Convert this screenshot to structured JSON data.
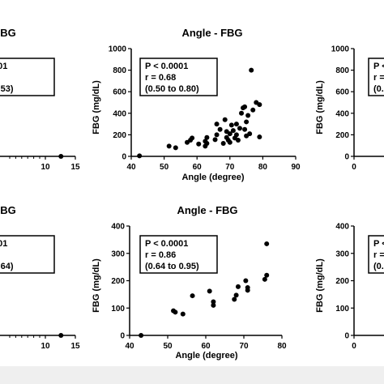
{
  "chart_data": [
    {
      "panel": "top-left",
      "type": "scatter",
      "title": "BG",
      "xlabel": "n)",
      "ylabel": "",
      "xticks": [
        "10",
        "15"
      ],
      "xlim": [
        0,
        15
      ],
      "stats": [
        "P < 0.0001",
        "r = -0.69",
        ".81 to -0.53)"
      ],
      "points": [
        {
          "x": 12.6,
          "y": 0
        }
      ]
    },
    {
      "panel": "top-middle",
      "type": "scatter",
      "title": "Angle - FBG",
      "xlabel": "Angle (degree)",
      "ylabel": "FBG (mg/dL)",
      "xlim": [
        40,
        90
      ],
      "ylim": [
        0,
        1000
      ],
      "xticks": [
        "40",
        "50",
        "60",
        "70",
        "80",
        "90"
      ],
      "yticks": [
        "0",
        "200",
        "400",
        "600",
        "800",
        "1000"
      ],
      "stats": [
        "P < 0.0001",
        "r = 0.68",
        "(0.50 to 0.80)"
      ],
      "points": [
        {
          "x": 42.5,
          "y": 5
        },
        {
          "x": 51.5,
          "y": 95
        },
        {
          "x": 53.5,
          "y": 80
        },
        {
          "x": 57,
          "y": 130
        },
        {
          "x": 58,
          "y": 150
        },
        {
          "x": 58.5,
          "y": 170
        },
        {
          "x": 60.5,
          "y": 115
        },
        {
          "x": 62.5,
          "y": 140
        },
        {
          "x": 62.5,
          "y": 95
        },
        {
          "x": 63,
          "y": 175
        },
        {
          "x": 63,
          "y": 120
        },
        {
          "x": 65.5,
          "y": 155
        },
        {
          "x": 66,
          "y": 200
        },
        {
          "x": 66,
          "y": 300
        },
        {
          "x": 67,
          "y": 250
        },
        {
          "x": 68,
          "y": 120
        },
        {
          "x": 68.5,
          "y": 340
        },
        {
          "x": 69,
          "y": 230
        },
        {
          "x": 69,
          "y": 175
        },
        {
          "x": 69.5,
          "y": 150
        },
        {
          "x": 70,
          "y": 210
        },
        {
          "x": 70,
          "y": 130
        },
        {
          "x": 70.5,
          "y": 290
        },
        {
          "x": 71,
          "y": 240
        },
        {
          "x": 71.5,
          "y": 170
        },
        {
          "x": 72,
          "y": 300
        },
        {
          "x": 72,
          "y": 200
        },
        {
          "x": 72.5,
          "y": 150
        },
        {
          "x": 73,
          "y": 260
        },
        {
          "x": 73.5,
          "y": 400
        },
        {
          "x": 74,
          "y": 450
        },
        {
          "x": 74.5,
          "y": 460
        },
        {
          "x": 74.5,
          "y": 250
        },
        {
          "x": 75,
          "y": 190
        },
        {
          "x": 75,
          "y": 320
        },
        {
          "x": 75.5,
          "y": 380
        },
        {
          "x": 76,
          "y": 210
        },
        {
          "x": 76.5,
          "y": 800
        },
        {
          "x": 77,
          "y": 430
        },
        {
          "x": 78,
          "y": 500
        },
        {
          "x": 79,
          "y": 480
        },
        {
          "x": 79,
          "y": 180
        }
      ]
    },
    {
      "panel": "top-right",
      "type": "scatter",
      "title": "",
      "xlabel": "",
      "ylabel": "FBG (mg/dL)",
      "ylim": [
        0,
        1000
      ],
      "yticks": [
        "0",
        "200",
        "400",
        "600",
        "800",
        "1000"
      ],
      "xticks": [
        "0"
      ],
      "stats": [
        "P <",
        "r =",
        "(0."
      ],
      "points": []
    },
    {
      "panel": "bottom-left",
      "type": "scatter",
      "title": "BG",
      "xlabel": "n)",
      "ylabel": "",
      "xticks": [
        "10",
        "15"
      ],
      "xlim": [
        0,
        15
      ],
      "stats": [
        "P < 0.0001",
        "r = -0.86",
        ".95 to -0.64)"
      ],
      "points": [
        {
          "x": 12.6,
          "y": 0
        }
      ]
    },
    {
      "panel": "bottom-middle",
      "type": "scatter",
      "title": "Angle - FBG",
      "xlabel": "Angle (degree)",
      "ylabel": "FBG (mg/dL)",
      "xlim": [
        40,
        80
      ],
      "ylim": [
        0,
        400
      ],
      "xticks": [
        "40",
        "50",
        "60",
        "70",
        "80"
      ],
      "yticks": [
        "0",
        "100",
        "200",
        "300",
        "400"
      ],
      "stats": [
        "P < 0.0001",
        "r = 0.86",
        "(0.64 to 0.95)"
      ],
      "points": [
        {
          "x": 43,
          "y": 0
        },
        {
          "x": 51.5,
          "y": 90
        },
        {
          "x": 52,
          "y": 85
        },
        {
          "x": 54,
          "y": 78
        },
        {
          "x": 56.5,
          "y": 145
        },
        {
          "x": 61,
          "y": 162
        },
        {
          "x": 62,
          "y": 123
        },
        {
          "x": 62,
          "y": 110
        },
        {
          "x": 67.5,
          "y": 132
        },
        {
          "x": 68,
          "y": 147
        },
        {
          "x": 68.5,
          "y": 178
        },
        {
          "x": 70.5,
          "y": 200
        },
        {
          "x": 71,
          "y": 165
        },
        {
          "x": 71,
          "y": 175
        },
        {
          "x": 75.5,
          "y": 205
        },
        {
          "x": 76,
          "y": 220
        },
        {
          "x": 76,
          "y": 335
        }
      ]
    },
    {
      "panel": "bottom-right",
      "type": "scatter",
      "title": "",
      "xlabel": "",
      "ylabel": "FBG (mg/dL)",
      "ylim": [
        0,
        400
      ],
      "yticks": [
        "0",
        "100",
        "200",
        "300",
        "400"
      ],
      "xticks": [
        "0"
      ],
      "stats": [
        "P <",
        "r =",
        "(0."
      ],
      "points": []
    }
  ]
}
